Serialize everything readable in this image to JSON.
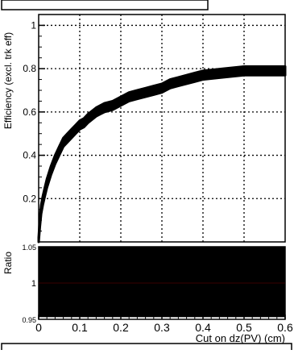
{
  "chart_data": [
    {
      "type": "line",
      "panel": "upper",
      "title": "",
      "xlabel": "",
      "ylabel": "Efficiency (excl. trk eff)",
      "xlim": [
        0,
        0.6
      ],
      "ylim": [
        0,
        1.05
      ],
      "y_ticks": [
        0.2,
        0.4,
        0.6,
        0.8,
        1
      ],
      "grid": true,
      "series": [
        {
          "x": [
            0.0,
            0.003,
            0.006,
            0.01,
            0.015,
            0.02,
            0.03,
            0.04,
            0.05,
            0.06,
            0.07,
            0.08,
            0.09,
            0.1,
            0.11,
            0.12,
            0.14,
            0.16,
            0.18,
            0.2,
            0.22,
            0.24,
            0.26,
            0.28,
            0.3,
            0.32,
            0.34,
            0.36,
            0.38,
            0.4,
            0.45,
            0.5,
            0.55,
            0.6
          ],
          "values": [
            0.0,
            0.09,
            0.15,
            0.19,
            0.23,
            0.27,
            0.33,
            0.38,
            0.42,
            0.46,
            0.48,
            0.5,
            0.52,
            0.54,
            0.55,
            0.57,
            0.6,
            0.62,
            0.63,
            0.65,
            0.67,
            0.68,
            0.69,
            0.7,
            0.71,
            0.73,
            0.74,
            0.75,
            0.76,
            0.77,
            0.78,
            0.79,
            0.79,
            0.79
          ],
          "error_band": 0.02
        }
      ]
    },
    {
      "type": "line",
      "panel": "lower",
      "title": "",
      "xlabel": "Cut on dz(PV) (cm)",
      "ylabel": "Ratio",
      "xlim": [
        0,
        0.6
      ],
      "ylim": [
        0.95,
        1.05
      ],
      "x_ticks": [
        0,
        0.1,
        0.2,
        0.3,
        0.4,
        0.5,
        0.6
      ],
      "y_ticks": [
        0.95,
        1,
        1.05
      ],
      "y_tick_labels": [
        "0.95",
        "1",
        "1.05"
      ],
      "grid": true,
      "series": [
        {
          "x": [
            0,
            0.6
          ],
          "values": [
            1.0,
            1.0
          ],
          "filled_range": [
            0.953,
            1.05
          ]
        }
      ]
    }
  ]
}
